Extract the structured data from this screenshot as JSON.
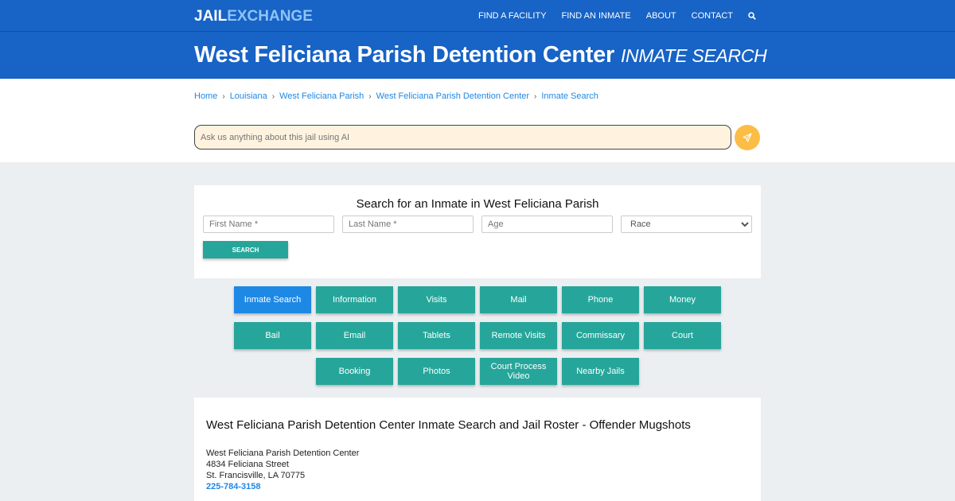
{
  "header": {
    "logo_a": "JAIL",
    "logo_b": "EXCHANGE",
    "nav": [
      "FIND A FACILITY",
      "FIND AN INMATE",
      "ABOUT",
      "CONTACT"
    ],
    "search_icon": "search-icon"
  },
  "title": {
    "main": "West Feliciana Parish Detention Center",
    "sub": "INMATE SEARCH"
  },
  "breadcrumb": [
    "Home",
    "Louisiana",
    "West Feliciana Parish",
    "West Feliciana Parish Detention Center",
    "Inmate Search"
  ],
  "ai": {
    "placeholder": "Ask us anything about this jail using AI",
    "send_icon": "paper-plane-icon"
  },
  "search": {
    "heading": "Search for an Inmate in West Feliciana Parish",
    "first": "First Name *",
    "last": "Last Name *",
    "age": "Age",
    "race": "Race",
    "button": "SEARCH"
  },
  "buttons": [
    "Inmate Search",
    "Information",
    "Visits",
    "Mail",
    "Phone",
    "Money",
    "Bail",
    "Email",
    "Tablets",
    "Remote Visits",
    "Commissary",
    "Court",
    "Booking",
    "Photos",
    "Court Process Video",
    "Nearby Jails"
  ],
  "active_button": "Inmate Search",
  "info": {
    "heading": "West Feliciana Parish Detention Center Inmate Search and Jail Roster - Offender Mugshots",
    "name": "West Feliciana Parish Detention Center",
    "street": "4834 Feliciana Street",
    "city": "St. Francisville, LA 70775",
    "phone": "225-784-3158"
  },
  "colors": {
    "brand": "#1763c6",
    "teal": "#26a69a",
    "active": "#1e88e5",
    "ai_bg": "#fff3e0",
    "send": "#fbbd45"
  }
}
